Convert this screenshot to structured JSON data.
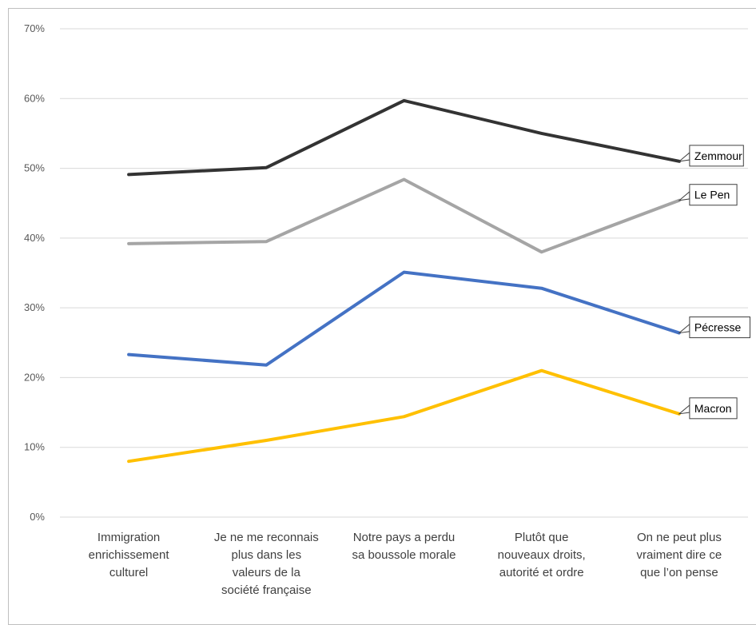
{
  "chart_data": {
    "type": "line",
    "categories": [
      [
        "Immigration",
        "enrichissement",
        "culturel"
      ],
      [
        "Je ne me reconnais",
        "plus dans les",
        "valeurs de la",
        "société française"
      ],
      [
        "Notre pays a perdu",
        "sa boussole morale"
      ],
      [
        "Plutôt que",
        "nouveaux droits,",
        "autorité et ordre"
      ],
      [
        "On ne peut plus",
        "vraiment dire ce",
        "que l’on pense"
      ]
    ],
    "y_ticks": [
      "0%",
      "10%",
      "20%",
      "30%",
      "40%",
      "50%",
      "60%",
      "70%"
    ],
    "ylim": [
      0,
      70
    ],
    "grid": true,
    "series": [
      {
        "name": "Zemmour",
        "color": "#333333",
        "values": [
          49.1,
          50.1,
          59.7,
          55.0,
          51.0
        ]
      },
      {
        "name": "Le Pen",
        "color": "#a5a5a5",
        "values": [
          39.2,
          39.5,
          48.4,
          38.0,
          45.4
        ]
      },
      {
        "name": "Pécresse",
        "color": "#4472c4",
        "values": [
          23.3,
          21.8,
          35.1,
          32.8,
          26.4
        ]
      },
      {
        "name": "Macron",
        "color": "#ffc000",
        "values": [
          8.0,
          11.0,
          14.4,
          21.0,
          14.8
        ]
      }
    ]
  }
}
